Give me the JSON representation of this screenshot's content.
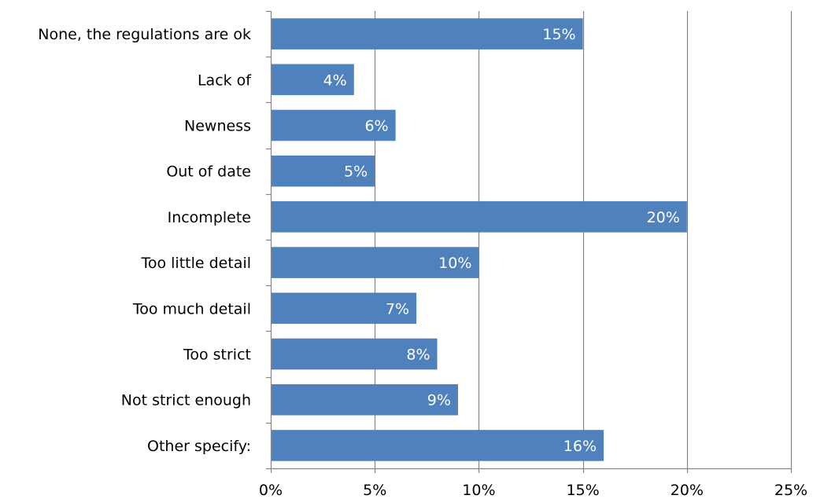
{
  "chart_data": {
    "type": "bar",
    "orientation": "horizontal",
    "categories": [
      "None, the regulations are ok",
      "Lack of",
      "Newness",
      "Out of date",
      "Incomplete",
      "Too little detail",
      "Too much detail",
      "Too strict",
      "Not strict enough",
      "Other specify:"
    ],
    "values": [
      15,
      4,
      6,
      5,
      20,
      10,
      7,
      8,
      9,
      16
    ],
    "value_labels": [
      "15%",
      "4%",
      "6%",
      "5%",
      "20%",
      "10%",
      "7%",
      "8%",
      "9%",
      "16%"
    ],
    "xlim": [
      0,
      25
    ],
    "xticks": [
      0,
      5,
      10,
      15,
      20,
      25
    ],
    "xtick_labels": [
      "0%",
      "5%",
      "10%",
      "15%",
      "20%",
      "25%"
    ],
    "grid": "vertical",
    "legend": "none",
    "colors": {
      "bar": "#4f81bd",
      "grid": "#868686",
      "axis": "#868686",
      "data_label": "#ffffff"
    }
  }
}
